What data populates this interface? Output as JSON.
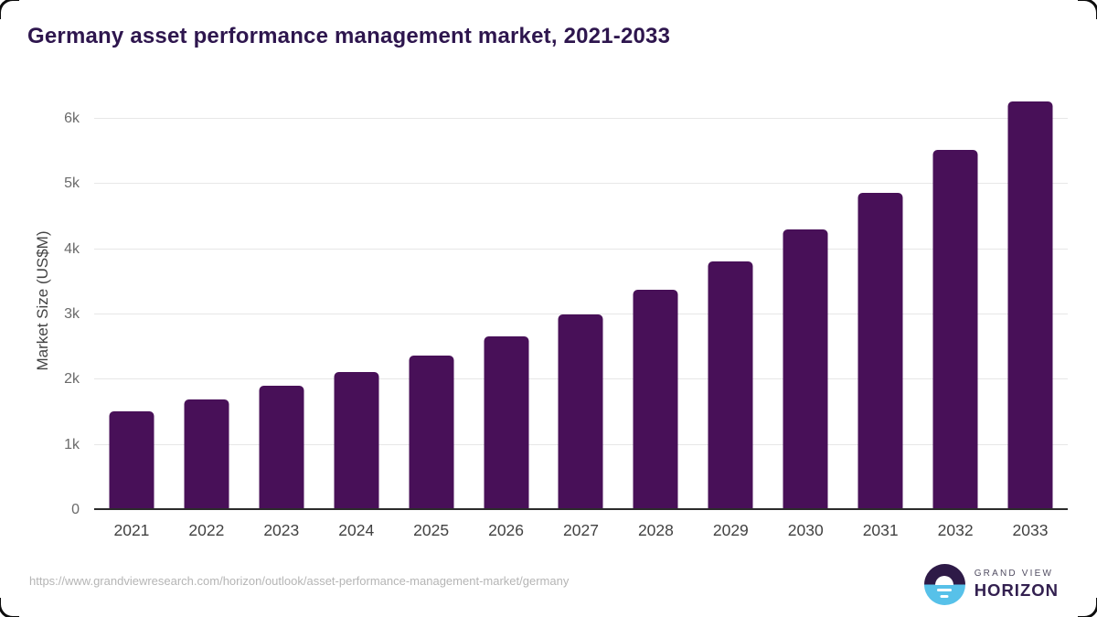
{
  "title": "Germany asset performance management market, 2021-2033",
  "footer": {
    "source_url": "https://www.grandviewresearch.com/horizon/outlook/asset-performance-management-market/germany",
    "brand_top": "GRAND VIEW",
    "brand_bottom": "HORIZON"
  },
  "colors": {
    "bar": "#481058",
    "title": "#2e164e",
    "gridline": "#e7e7e7",
    "axis_line": "#2b2b2b",
    "tick_label": "#6a6a6a",
    "x_label": "#424242",
    "url_text": "#b5b5b5",
    "logo_purple": "#2e1a47",
    "logo_blue": "#57c1e9"
  },
  "chart_data": {
    "type": "bar",
    "title": "Germany asset performance management market, 2021-2033",
    "categories": [
      "2021",
      "2022",
      "2023",
      "2024",
      "2025",
      "2026",
      "2027",
      "2028",
      "2029",
      "2030",
      "2031",
      "2032",
      "2033"
    ],
    "values": [
      1520,
      1690,
      1900,
      2110,
      2370,
      2660,
      3000,
      3380,
      3810,
      4310,
      4870,
      5520,
      6270
    ],
    "xlabel": "",
    "ylabel": "Market Size (US$M)",
    "ylim": [
      0,
      6420
    ],
    "yticks": [
      {
        "value": 0,
        "label": "0"
      },
      {
        "value": 1000,
        "label": "1k"
      },
      {
        "value": 2000,
        "label": "2k"
      },
      {
        "value": 3000,
        "label": "3k"
      },
      {
        "value": 4000,
        "label": "4k"
      },
      {
        "value": 5000,
        "label": "5k"
      },
      {
        "value": 6000,
        "label": "6k"
      }
    ],
    "grid": true,
    "legend": false,
    "bar_color": "#481058"
  }
}
